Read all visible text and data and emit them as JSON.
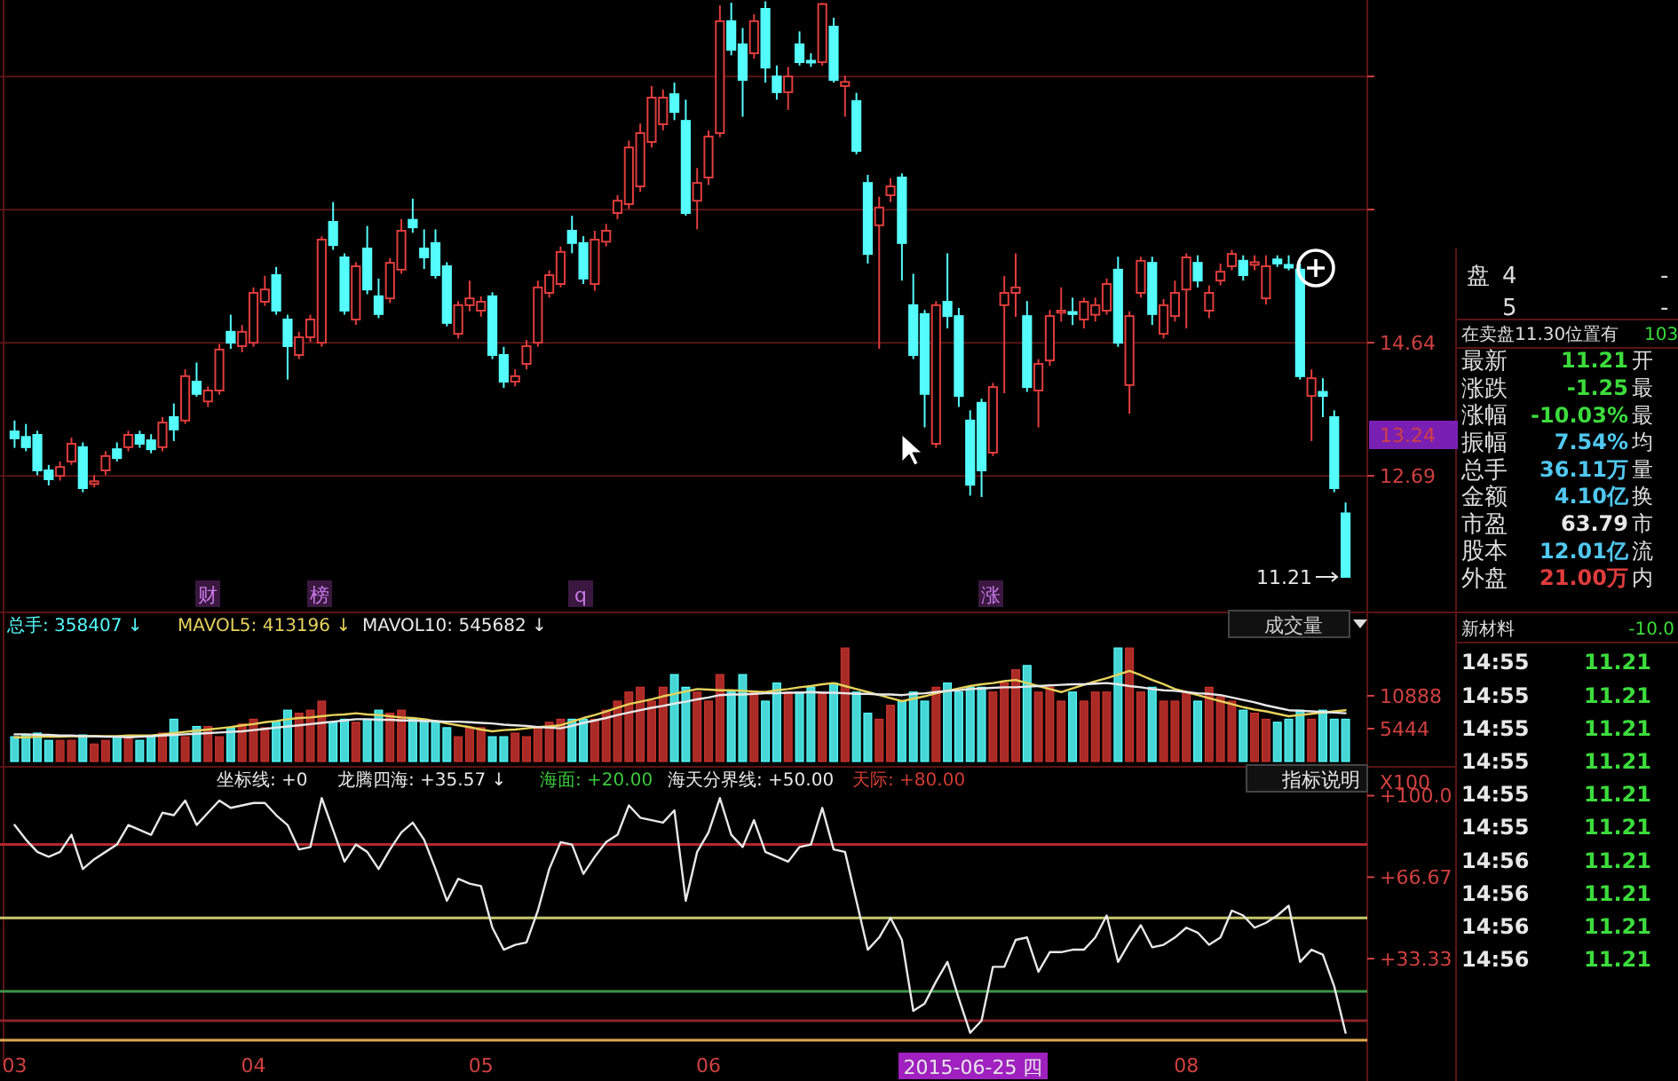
{
  "chart_data": [
    {
      "type": "candlestick",
      "categories": [
        null,
        null,
        null,
        null,
        null,
        null,
        null,
        null,
        null,
        null,
        null,
        null,
        null,
        null,
        null,
        null,
        null,
        null,
        null,
        null,
        null,
        null,
        null,
        null,
        null,
        null,
        null,
        null,
        null,
        null,
        null,
        null,
        null,
        null,
        null,
        null,
        null,
        null,
        null,
        null,
        null,
        null,
        null,
        null,
        null,
        null,
        null,
        null,
        null,
        null,
        null,
        null,
        null,
        null,
        null,
        null,
        null,
        null,
        null,
        null,
        null,
        null,
        null,
        null,
        null,
        null,
        null,
        null,
        null,
        null,
        null,
        null,
        null,
        null,
        null,
        null,
        null,
        null,
        null,
        null,
        null,
        null,
        null,
        null,
        null,
        null,
        null,
        null,
        null,
        null,
        null,
        null,
        null,
        null,
        null,
        null,
        null,
        null,
        null,
        null,
        null,
        null,
        null,
        null,
        null,
        null,
        null,
        null,
        null,
        null,
        null,
        null,
        null,
        null,
        null,
        null,
        null,
        null
      ],
      "ohlc": [
        [
          13.34,
          13.5,
          13.1,
          13.24
        ],
        [
          13.26,
          13.45,
          13.05,
          13.11
        ],
        [
          13.29,
          13.35,
          12.7,
          12.77
        ],
        [
          12.77,
          12.85,
          12.55,
          12.64
        ],
        [
          12.69,
          12.9,
          12.62,
          12.82
        ],
        [
          12.9,
          13.25,
          12.85,
          13.16
        ],
        [
          13.11,
          13.18,
          12.45,
          12.51
        ],
        [
          12.57,
          12.7,
          12.52,
          12.61
        ],
        [
          12.77,
          13.05,
          12.7,
          12.98
        ],
        [
          13.08,
          13.18,
          12.9,
          12.95
        ],
        [
          13.11,
          13.35,
          13.05,
          13.29
        ],
        [
          13.29,
          13.35,
          13.1,
          13.16
        ],
        [
          13.21,
          13.3,
          13.02,
          13.08
        ],
        [
          13.11,
          13.55,
          13.05,
          13.47
        ],
        [
          13.55,
          13.75,
          13.2,
          13.37
        ],
        [
          13.5,
          14.25,
          13.45,
          14.15
        ],
        [
          14.07,
          14.35,
          13.85,
          13.89
        ],
        [
          13.78,
          14.0,
          13.7,
          13.94
        ],
        [
          13.94,
          14.62,
          13.88,
          14.54
        ],
        [
          14.8,
          15.05,
          14.55,
          14.64
        ],
        [
          14.59,
          14.9,
          14.5,
          14.8
        ],
        [
          14.64,
          15.45,
          14.58,
          15.37
        ],
        [
          15.24,
          15.62,
          15.18,
          15.42
        ],
        [
          15.63,
          15.75,
          15.05,
          15.11
        ],
        [
          14.98,
          15.05,
          14.1,
          14.59
        ],
        [
          14.46,
          14.8,
          14.4,
          14.72
        ],
        [
          14.72,
          15.05,
          14.65,
          14.98
        ],
        [
          14.64,
          16.2,
          14.58,
          16.15
        ],
        [
          16.41,
          16.7,
          16.0,
          16.07
        ],
        [
          15.89,
          15.95,
          15.05,
          15.11
        ],
        [
          14.98,
          15.82,
          14.9,
          15.76
        ],
        [
          16.02,
          16.35,
          15.35,
          15.42
        ],
        [
          15.32,
          15.58,
          15.0,
          15.06
        ],
        [
          15.29,
          15.88,
          15.22,
          15.81
        ],
        [
          15.71,
          16.45,
          15.65,
          16.28
        ],
        [
          16.44,
          16.75,
          16.25,
          16.33
        ],
        [
          16.02,
          16.3,
          15.72,
          15.89
        ],
        [
          16.1,
          16.3,
          15.58,
          15.63
        ],
        [
          15.76,
          15.82,
          14.88,
          14.93
        ],
        [
          14.77,
          15.25,
          14.7,
          15.19
        ],
        [
          15.19,
          15.55,
          15.1,
          15.29
        ],
        [
          15.11,
          15.32,
          15.02,
          15.24
        ],
        [
          15.32,
          15.38,
          14.4,
          14.46
        ],
        [
          14.46,
          14.58,
          13.98,
          14.07
        ],
        [
          14.07,
          14.25,
          14.0,
          14.15
        ],
        [
          14.33,
          14.68,
          14.25,
          14.59
        ],
        [
          14.64,
          15.55,
          14.58,
          15.45
        ],
        [
          15.37,
          15.7,
          15.3,
          15.63
        ],
        [
          15.5,
          16.05,
          15.45,
          15.97
        ],
        [
          16.28,
          16.5,
          15.95,
          16.1
        ],
        [
          16.1,
          16.2,
          15.5,
          15.58
        ],
        [
          15.5,
          16.28,
          15.4,
          16.15
        ],
        [
          16.12,
          16.38,
          16.05,
          16.28
        ],
        [
          16.54,
          16.8,
          16.45,
          16.72
        ],
        [
          16.67,
          17.6,
          16.6,
          17.5
        ],
        [
          16.93,
          17.85,
          16.85,
          17.71
        ],
        [
          17.58,
          18.4,
          17.5,
          18.23
        ],
        [
          17.84,
          18.35,
          17.75,
          18.23
        ],
        [
          18.28,
          18.45,
          17.9,
          18.02
        ],
        [
          17.89,
          18.2,
          16.5,
          16.54
        ],
        [
          16.72,
          17.2,
          16.3,
          16.98
        ],
        [
          17.06,
          17.75,
          16.95,
          17.66
        ],
        [
          17.71,
          19.58,
          17.65,
          19.35
        ],
        [
          19.35,
          19.62,
          18.85,
          18.93
        ],
        [
          19.01,
          19.25,
          17.95,
          18.49
        ],
        [
          18.88,
          19.45,
          18.8,
          19.35
        ],
        [
          19.53,
          19.64,
          18.45,
          18.67
        ],
        [
          18.54,
          18.7,
          18.2,
          18.31
        ],
        [
          18.31,
          18.68,
          18.05,
          18.54
        ],
        [
          19.01,
          19.2,
          18.7,
          18.75
        ],
        [
          18.77,
          18.88,
          18.68,
          18.75
        ],
        [
          18.75,
          19.62,
          18.7,
          19.6
        ],
        [
          19.27,
          19.4,
          18.45,
          18.49
        ],
        [
          18.4,
          18.55,
          17.95,
          18.46
        ],
        [
          18.18,
          18.3,
          17.4,
          17.45
        ],
        [
          16.98,
          17.1,
          15.8,
          15.94
        ],
        [
          16.36,
          16.78,
          14.55,
          16.62
        ],
        [
          16.8,
          17.05,
          16.7,
          16.93
        ],
        [
          17.06,
          17.12,
          15.55,
          16.1
        ],
        [
          15.19,
          15.65,
          14.4,
          14.46
        ],
        [
          15.06,
          15.12,
          13.4,
          13.89
        ],
        [
          13.16,
          15.25,
          13.1,
          15.19
        ],
        [
          15.24,
          15.95,
          14.85,
          15.03
        ],
        [
          15.03,
          15.15,
          13.7,
          13.86
        ],
        [
          13.5,
          13.65,
          12.4,
          12.56
        ],
        [
          13.76,
          13.82,
          12.38,
          12.77
        ],
        [
          13.03,
          14.05,
          12.98,
          13.99
        ],
        [
          15.19,
          15.62,
          13.9,
          15.37
        ],
        [
          15.37,
          15.95,
          15.02,
          15.45
        ],
        [
          15.03,
          15.25,
          13.92,
          13.99
        ],
        [
          13.94,
          14.4,
          13.4,
          14.33
        ],
        [
          14.38,
          15.12,
          14.3,
          15.03
        ],
        [
          15.08,
          15.45,
          14.95,
          15.11
        ],
        [
          15.09,
          15.3,
          14.9,
          15.06
        ],
        [
          14.98,
          15.3,
          14.85,
          15.24
        ],
        [
          15.05,
          15.3,
          14.95,
          15.19
        ],
        [
          15.11,
          15.58,
          15.05,
          15.5
        ],
        [
          15.71,
          15.9,
          14.58,
          14.64
        ],
        [
          14.02,
          15.1,
          13.6,
          15.03
        ],
        [
          15.37,
          15.9,
          15.3,
          15.84
        ],
        [
          15.81,
          15.9,
          14.9,
          15.06
        ],
        [
          14.77,
          15.28,
          14.7,
          15.19
        ],
        [
          15.03,
          15.55,
          14.95,
          15.37
        ],
        [
          15.42,
          15.95,
          14.85,
          15.89
        ],
        [
          15.81,
          15.92,
          15.45,
          15.55
        ],
        [
          15.11,
          15.48,
          15.0,
          15.37
        ],
        [
          15.55,
          15.8,
          15.48,
          15.68
        ],
        [
          15.76,
          16.0,
          15.7,
          15.94
        ],
        [
          15.84,
          15.92,
          15.55,
          15.63
        ],
        [
          15.78,
          15.92,
          15.7,
          15.82
        ],
        [
          15.29,
          15.92,
          15.2,
          15.76
        ],
        [
          15.86,
          15.92,
          15.75,
          15.8
        ],
        [
          15.78,
          15.92,
          15.7,
          15.74
        ],
        [
          15.71,
          15.8,
          14.1,
          14.15
        ],
        [
          13.86,
          14.25,
          13.2,
          14.12
        ],
        [
          13.92,
          14.12,
          13.55,
          13.86
        ],
        [
          13.55,
          13.65,
          12.45,
          12.51
        ],
        [
          12.14,
          12.3,
          11.21,
          11.21
        ]
      ],
      "ylim": [
        10.69,
        19.66
      ],
      "yticks": [
        {
          "value": 18.54,
          "label": null
        },
        {
          "value": 16.59,
          "label": null
        },
        14.64,
        12.69
      ],
      "grid": "y",
      "tick_labels": "y",
      "annotations": [
        "11.21",
        "13.24",
        "财",
        "榜",
        "q",
        "涨"
      ]
    },
    {
      "type": "bar",
      "categories": [
        null,
        null,
        null,
        null,
        null,
        null,
        null,
        null,
        null,
        null,
        null,
        null,
        null,
        null,
        null,
        null,
        null,
        null,
        null,
        null,
        null,
        null,
        null,
        null,
        null,
        null,
        null,
        null,
        null,
        null,
        null,
        null,
        null,
        null,
        null,
        null,
        null,
        null,
        null,
        null,
        null,
        null,
        null,
        null,
        null,
        null,
        null,
        null,
        null,
        null,
        null,
        null,
        null,
        null,
        null,
        null,
        null,
        null,
        null,
        null,
        null,
        null,
        null,
        null,
        null,
        null,
        null,
        null,
        null,
        null,
        null,
        null,
        null,
        null,
        null,
        null,
        null,
        null,
        null,
        null,
        null,
        null,
        null,
        null,
        null,
        null,
        null,
        null,
        null,
        null,
        null,
        null,
        null,
        null,
        null,
        null,
        null,
        null,
        null,
        null,
        null,
        null,
        null,
        null,
        null,
        null,
        null,
        null,
        null,
        null,
        null,
        null,
        null,
        null,
        null,
        null,
        null,
        null
      ],
      "ylim": [
        0,
        24700
      ],
      "yticks": [
        5444,
        10888
      ],
      "tick_labels": "y",
      "ylabel": "X100",
      "series": [
        {
          "type": "bar",
          "values": [
            4100,
            4400,
            4700,
            3500,
            3500,
            3500,
            4400,
            2900,
            3500,
            4100,
            4100,
            3500,
            4100,
            4700,
            7000,
            4100,
            5800,
            5800,
            4100,
            5600,
            6200,
            7000,
            5600,
            6500,
            8500,
            8000,
            8500,
            10000,
            6500,
            7000,
            6500,
            7000,
            8500,
            8000,
            8500,
            7000,
            7000,
            6500,
            5600,
            4100,
            5600,
            5600,
            4100,
            4100,
            4700,
            4100,
            5600,
            6500,
            7000,
            7000,
            7000,
            7000,
            8500,
            10000,
            11500,
            12300,
            10000,
            12300,
            14400,
            12300,
            11500,
            10000,
            14400,
            11500,
            14400,
            11500,
            10000,
            13000,
            11500,
            11500,
            12300,
            11500,
            13000,
            18800,
            11500,
            8000,
            7000,
            9300,
            10000,
            11500,
            10000,
            12300,
            13000,
            11500,
            12300,
            12300,
            11500,
            13000,
            15200,
            15900,
            11500,
            12300,
            10000,
            11500,
            10000,
            11500,
            11500,
            18800,
            18800,
            11500,
            12300,
            10000,
            10000,
            11500,
            10000,
            12300,
            10700,
            10000,
            8500,
            8000,
            7000,
            6500,
            7000,
            8500,
            7000,
            8500,
            7000,
            7000
          ],
          "colors": [
            "#54fcfc",
            "#54fcfc",
            "#54fcfc",
            "#54fcfc",
            "#c8322d",
            "#c8322d",
            "#54fcfc",
            "#c8322d",
            "#c8322d",
            "#54fcfc",
            "#c8322d",
            "#54fcfc",
            "#54fcfc",
            "#c8322d",
            "#54fcfc",
            "#c8322d",
            "#54fcfc",
            "#c8322d",
            "#c8322d",
            "#54fcfc",
            "#c8322d",
            "#c8322d",
            "#c8322d",
            "#54fcfc",
            "#54fcfc",
            "#c8322d",
            "#c8322d",
            "#c8322d",
            "#54fcfc",
            "#54fcfc",
            "#c8322d",
            "#54fcfc",
            "#54fcfc",
            "#c8322d",
            "#c8322d",
            "#54fcfc",
            "#54fcfc",
            "#54fcfc",
            "#54fcfc",
            "#c8322d",
            "#c8322d",
            "#c8322d",
            "#54fcfc",
            "#54fcfc",
            "#c8322d",
            "#c8322d",
            "#c8322d",
            "#c8322d",
            "#c8322d",
            "#54fcfc",
            "#54fcfc",
            "#c8322d",
            "#c8322d",
            "#c8322d",
            "#c8322d",
            "#c8322d",
            "#c8322d",
            "#c8322d",
            "#54fcfc",
            "#54fcfc",
            "#c8322d",
            "#c8322d",
            "#c8322d",
            "#54fcfc",
            "#54fcfc",
            "#c8322d",
            "#54fcfc",
            "#54fcfc",
            "#c8322d",
            "#54fcfc",
            "#54fcfc",
            "#c8322d",
            "#54fcfc",
            "#c8322d",
            "#54fcfc",
            "#54fcfc",
            "#c8322d",
            "#c8322d",
            "#54fcfc",
            "#54fcfc",
            "#54fcfc",
            "#c8322d",
            "#54fcfc",
            "#54fcfc",
            "#54fcfc",
            "#54fcfc",
            "#c8322d",
            "#c8322d",
            "#c8322d",
            "#54fcfc",
            "#c8322d",
            "#c8322d",
            "#c8322d",
            "#54fcfc",
            "#c8322d",
            "#c8322d",
            "#c8322d",
            "#54fcfc",
            "#c8322d",
            "#c8322d",
            "#54fcfc",
            "#c8322d",
            "#c8322d",
            "#c8322d",
            "#54fcfc",
            "#c8322d",
            "#c8322d",
            "#c8322d",
            "#54fcfc",
            "#c8322d",
            "#c8322d",
            "#54fcfc",
            "#54fcfc",
            "#54fcfc",
            "#c8322d",
            "#54fcfc",
            "#54fcfc",
            "#54fcfc"
          ]
        },
        {
          "type": "line",
          "color": "#e6d25a",
          "values": [
            4000,
            4000,
            4100,
            4100,
            4100,
            4200,
            4200,
            4200,
            4200,
            4200,
            4300,
            4300,
            4300,
            4500,
            4700,
            4900,
            5100,
            5300,
            5500,
            5700,
            6000,
            6200,
            6500,
            6700,
            7000,
            7200,
            7300,
            7500,
            7700,
            7800,
            8000,
            7800,
            7700,
            7500,
            7300,
            7200,
            7000,
            6700,
            6300,
            6000,
            5700,
            5300,
            5000,
            5200,
            5300,
            5500,
            5700,
            5800,
            6000,
            6600,
            7200,
            7700,
            8300,
            8900,
            9500,
            9900,
            10300,
            10800,
            11200,
            11600,
            12000,
            11900,
            11800,
            11800,
            11700,
            11600,
            11500,
            11800,
            12000,
            12300,
            12500,
            12800,
            13000,
            12500,
            12000,
            11500,
            11000,
            10500,
            10000,
            10400,
            10800,
            11300,
            11700,
            12100,
            12500,
            12800,
            13000,
            13300,
            13500,
            13000,
            12500,
            12000,
            11500,
            12100,
            12700,
            13300,
            13800,
            14400,
            15000,
            14300,
            13500,
            12800,
            12000,
            11500,
            11000,
            10500,
            10000,
            9500,
            9000,
            8600,
            8300,
            7900,
            7500,
            7700,
            7900,
            8100,
            8300,
            8500
          ]
        },
        {
          "type": "line",
          "color": "#e8e8e8",
          "values": [
            4500,
            4500,
            4400,
            4400,
            4300,
            4300,
            4200,
            4200,
            4100,
            4100,
            4000,
            4100,
            4200,
            4300,
            4400,
            4500,
            4600,
            4700,
            4800,
            4900,
            5000,
            5200,
            5400,
            5600,
            5800,
            6000,
            6200,
            6400,
            6600,
            6800,
            7000,
            7000,
            6900,
            6900,
            6800,
            6800,
            6700,
            6700,
            6600,
            6600,
            6500,
            6400,
            6300,
            6100,
            6000,
            5900,
            5700,
            5600,
            5500,
            5900,
            6400,
            6800,
            7200,
            7700,
            8100,
            8500,
            8900,
            9200,
            9600,
            9900,
            10300,
            10600,
            11000,
            11100,
            11100,
            11200,
            11300,
            11300,
            11400,
            11400,
            11500,
            11400,
            11400,
            11300,
            11200,
            11200,
            11100,
            11100,
            11000,
            11200,
            11300,
            11500,
            11700,
            11800,
            12000,
            12100,
            12200,
            12300,
            12300,
            12400,
            12500,
            12600,
            12700,
            12800,
            12800,
            12900,
            13000,
            12800,
            12500,
            12300,
            12000,
            11800,
            11700,
            11500,
            11300,
            11200,
            11000,
            10600,
            10200,
            9800,
            9300,
            8900,
            8500,
            8400,
            8300,
            8200,
            8100,
            8000
          ]
        }
      ],
      "annotations": [
        "总手: 358407 ↓",
        "MAVOL5: 413196 ↓",
        "MAVOL10: 545682 ↓",
        "成交量"
      ]
    },
    {
      "type": "line",
      "categories": [
        "03",
        null,
        null,
        null,
        null,
        null,
        null,
        null,
        null,
        null,
        null,
        null,
        null,
        null,
        null,
        null,
        null,
        null,
        null,
        null,
        null,
        "04",
        null,
        null,
        null,
        null,
        null,
        null,
        null,
        null,
        null,
        null,
        null,
        null,
        null,
        null,
        null,
        null,
        null,
        null,
        null,
        "05",
        null,
        null,
        null,
        null,
        null,
        null,
        null,
        null,
        null,
        null,
        null,
        null,
        null,
        null,
        null,
        null,
        null,
        null,
        null,
        "06",
        null,
        null,
        null,
        null,
        null,
        null,
        null,
        null,
        null,
        null,
        null,
        null,
        null,
        null,
        null,
        null,
        null,
        null,
        null,
        null,
        null,
        null,
        null,
        null,
        null,
        null,
        null,
        null,
        null,
        null,
        null,
        null,
        null,
        null,
        null,
        null,
        null,
        null,
        null,
        null,
        null,
        "08",
        null,
        null,
        null,
        null,
        null,
        null,
        null,
        null,
        null,
        null,
        null,
        null,
        null,
        null
      ],
      "ylim": [
        -16.7,
        111.8
      ],
      "yticks": [
        {
          "value": 100,
          "label": "+100.0"
        },
        {
          "value": 66.67,
          "label": "+66.67"
        },
        {
          "value": 33.33,
          "label": "+33.33"
        }
      ],
      "series": [
        {
          "color": "#e8e8e8",
          "values": [
            88,
            82,
            77,
            75,
            77,
            84,
            70,
            74,
            77,
            80,
            88,
            86,
            84,
            93,
            92,
            98,
            88,
            93,
            98,
            95,
            96,
            97,
            97,
            92,
            88,
            78,
            79,
            99,
            86,
            73,
            80,
            77,
            70,
            78,
            85,
            89,
            82,
            70,
            57,
            66,
            64,
            63,
            46,
            37,
            39,
            40,
            53,
            70,
            81,
            80,
            68,
            75,
            81,
            84,
            96,
            91,
            90,
            89,
            94,
            57,
            77,
            85,
            99,
            84,
            79,
            90,
            77,
            75,
            73,
            79,
            80,
            95,
            78,
            77,
            57,
            37,
            42,
            50,
            41,
            12,
            15,
            24,
            32,
            17,
            3,
            8,
            30,
            30,
            41,
            42,
            28,
            36,
            36,
            37,
            37,
            42,
            51,
            32,
            40,
            47,
            38,
            39,
            42,
            46,
            44,
            39,
            42,
            53,
            51,
            46,
            48,
            51,
            55,
            32,
            37,
            35,
            22,
            3
          ]
        }
      ],
      "ref_lines": [
        {
          "axis": "y",
          "value": 80,
          "color": "#b4282d"
        },
        {
          "axis": "y",
          "value": 50,
          "color": "#c8c86e"
        },
        {
          "axis": "y",
          "value": 20,
          "color": "#3c9646"
        },
        {
          "axis": "y",
          "value": 8,
          "color": "#8c2328"
        },
        {
          "axis": "y",
          "value": 0,
          "color": "#e0a850"
        }
      ],
      "annotations": [
        "坐标线: +0",
        "龙腾四海: +35.57 ↓",
        "海面: +20.00",
        "海天分界线: +50.00",
        "天际: +80.00",
        "指标说明",
        "2015-06-25 四"
      ]
    },
    {
      "type": "other",
      "annotations": [
        "盘 4 -",
        "5 -",
        "在卖盘11.30位置有 103",
        "最新 11.21 开",
        "涨跌 -1.25 最",
        "涨幅 -10.03% 最",
        "振幅 7.54% 均",
        "总手 36.11万 量",
        "金额 4.10亿 换",
        "市盈 63.79 市",
        "股本 12.01亿 流",
        "外盘 21.00万 内",
        "新材料 -10.0",
        "14:55 11.21",
        "14:55 11.21",
        "14:55 11.21",
        "14:55 11.21",
        "14:55 11.21",
        "14:55 11.21",
        "14:56 11.21",
        "14:56 11.21",
        "14:56 11.21",
        "14:56 11.21"
      ]
    }
  ]
}
